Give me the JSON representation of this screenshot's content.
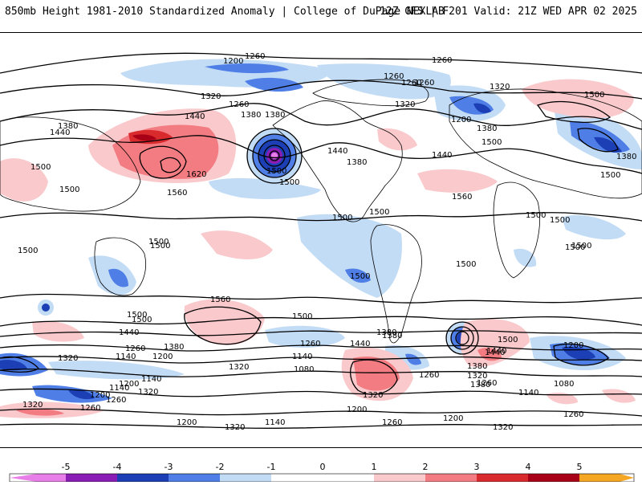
{
  "header": {
    "left": "850mb Height 1981-2010 Standardized Anomaly | College of DuPage NEXLAB",
    "right": "12Z GFS | F201 Valid: 21Z WED APR 02 2025"
  },
  "colors": {
    "neg5": "#e87fe8",
    "neg4": "#8a1eb4",
    "neg3": "#1c3fb5",
    "neg2": "#4f7fe6",
    "neg1": "#c3dcf6",
    "zero": "#ffffff",
    "pos1": "#f9c9cc",
    "pos2": "#f27c82",
    "pos3": "#d92a2e",
    "pos4": "#a80016",
    "pos5": "#f5a623",
    "land": "#ffffff",
    "coast": "#000000"
  },
  "colorbar": {
    "ticks": [
      "-5",
      "-4",
      "-3",
      "-2",
      "-1",
      "0",
      "1",
      "2",
      "3",
      "4",
      "5"
    ]
  },
  "contour_labels": [
    "1260",
    "1200",
    "1260",
    "1260",
    "1320",
    "1260",
    "1380",
    "1440",
    "1320",
    "1260",
    "1380",
    "1440",
    "1500",
    "1500",
    "1560",
    "1620",
    "1500",
    "1380",
    "1440",
    "1380",
    "1500",
    "1440",
    "1500",
    "1560",
    "1500",
    "1500",
    "1380",
    "1500",
    "1260",
    "1320",
    "1200",
    "1500",
    "1500",
    "1500",
    "1500",
    "1500",
    "1500",
    "1500",
    "1500",
    "1560",
    "1500",
    "1440",
    "1320",
    "1380",
    "1260",
    "1140",
    "1200",
    "1140",
    "1200",
    "1320",
    "1260",
    "1440",
    "1380",
    "1320",
    "1260",
    "1140",
    "1080",
    "1320",
    "1200",
    "1260",
    "1200",
    "1260",
    "1320",
    "1380",
    "1500",
    "1440",
    "1380",
    "1260",
    "1320",
    "1200",
    "1080",
    "1140",
    "1260",
    "1140",
    "1200",
    "1140",
    "1320",
    "1320",
    "1200",
    "1260",
    "1500",
    "1500",
    "1500",
    "1380",
    "1440",
    "1500",
    "1380"
  ]
}
